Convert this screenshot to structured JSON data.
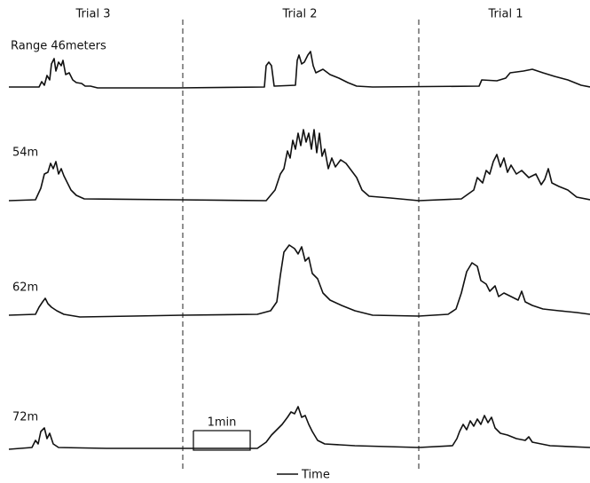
{
  "columns": [
    "Trial 3",
    "Trial 2",
    "Trial 1"
  ],
  "rows": [
    "Range 46meters",
    "54m",
    "62m",
    "72m"
  ],
  "scale_bar": "1min",
  "time_label": "Time"
}
